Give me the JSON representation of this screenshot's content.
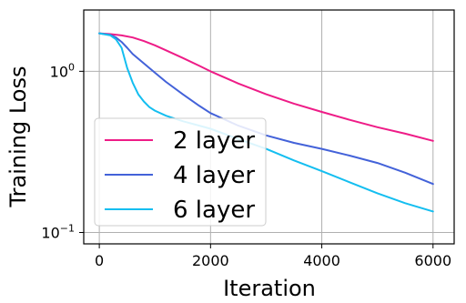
{
  "chart_data": {
    "type": "line",
    "xlabel": "Iteration",
    "ylabel": "Training Loss",
    "xlim": [
      -280,
      6380
    ],
    "ylim": [
      0.085,
      2.4
    ],
    "yscale": "log",
    "grid": true,
    "legend_position": "lower-left",
    "x_ticks": [
      {
        "value": 0,
        "label": "0"
      },
      {
        "value": 2000,
        "label": "2000"
      },
      {
        "value": 4000,
        "label": "4000"
      },
      {
        "value": 6000,
        "label": "6000"
      }
    ],
    "y_ticks": [
      {
        "value": 1,
        "base": "10",
        "exp": "0"
      },
      {
        "value": 0.1,
        "base": "10",
        "exp": "−1"
      }
    ],
    "series": [
      {
        "name": "2 layer",
        "color": "#ee1c87",
        "x": [
          0,
          200,
          400,
          600,
          800,
          1000,
          1200,
          1500,
          1800,
          2000,
          2500,
          3000,
          3500,
          4000,
          4500,
          5000,
          5500,
          6000
        ],
        "y": [
          1.72,
          1.7,
          1.67,
          1.62,
          1.54,
          1.45,
          1.35,
          1.21,
          1.08,
          1.0,
          0.84,
          0.72,
          0.63,
          0.56,
          0.5,
          0.45,
          0.41,
          0.37
        ]
      },
      {
        "name": "4 layer",
        "color": "#4362d9",
        "x": [
          0,
          200,
          300,
          400,
          500,
          600,
          800,
          1000,
          1200,
          1500,
          1800,
          2000,
          2500,
          3000,
          3500,
          4000,
          4500,
          5000,
          5500,
          6000
        ],
        "y": [
          1.72,
          1.68,
          1.62,
          1.52,
          1.4,
          1.28,
          1.12,
          0.98,
          0.86,
          0.72,
          0.61,
          0.55,
          0.46,
          0.4,
          0.36,
          0.33,
          0.3,
          0.27,
          0.235,
          0.2
        ]
      },
      {
        "name": "6 layer",
        "color": "#14bef0",
        "x": [
          0,
          200,
          300,
          400,
          500,
          600,
          700,
          800,
          900,
          1000,
          1200,
          1500,
          1800,
          2000,
          2500,
          3000,
          3500,
          4000,
          4500,
          5000,
          5500,
          6000
        ],
        "y": [
          1.72,
          1.67,
          1.58,
          1.4,
          1.05,
          0.85,
          0.72,
          0.65,
          0.6,
          0.57,
          0.53,
          0.49,
          0.46,
          0.44,
          0.38,
          0.33,
          0.28,
          0.24,
          0.205,
          0.175,
          0.152,
          0.135
        ]
      }
    ]
  }
}
